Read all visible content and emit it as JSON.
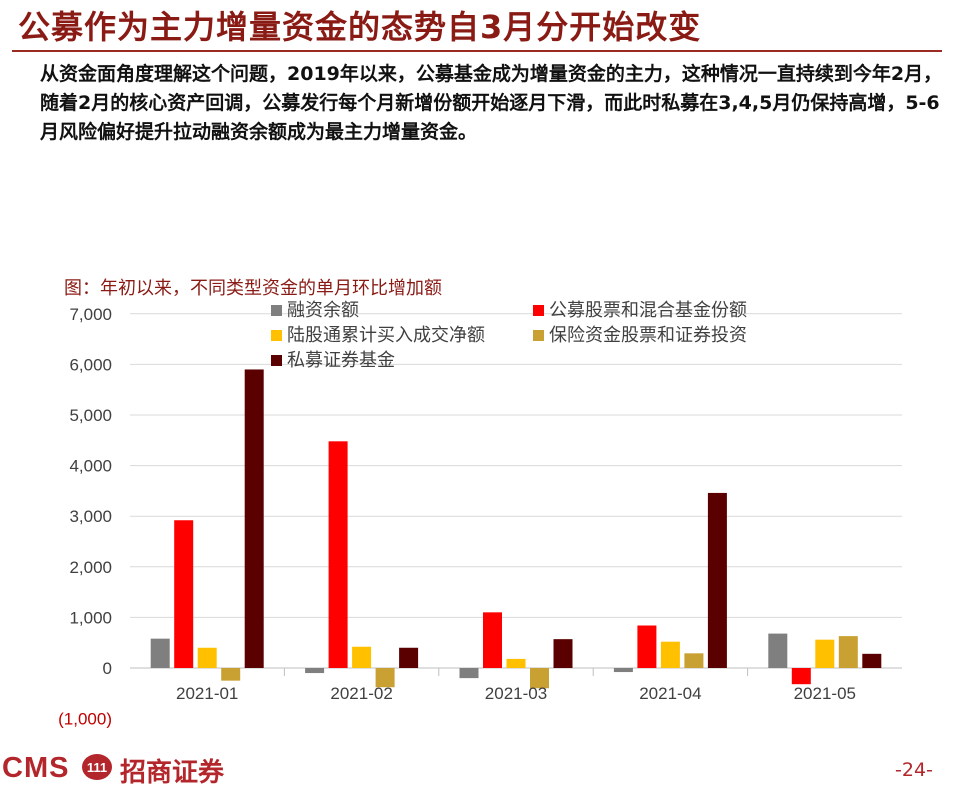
{
  "slide": {
    "title": "公募作为主力增量资金的态势自3月分开始改变",
    "intro": "从资金面角度理解这个问题，2019年以来，公募基金成为增量资金的主力，这种情况一直持续到今年2月，随着2月的核心资产回调，公募发行每个月新增份额开始逐月下滑，而此时私募在3,4,5月仍保持高增，5-6月风险偏好提升拉动融资余额成为最主力增量资金。",
    "page_number": "-24-",
    "brand_cms": "CMS",
    "brand_name": "招商证券",
    "brand_logo_text": "111",
    "colors": {
      "title": "#8a1a14",
      "brand": "#b3262b"
    }
  },
  "chart_data": {
    "type": "bar",
    "title": "图：年初以来，不同类型资金的单月环比增加额",
    "categories": [
      "2021-01",
      "2021-02",
      "2021-03",
      "2021-04",
      "2021-05"
    ],
    "ylim": [
      -1000,
      7000
    ],
    "yticks": [
      -1000,
      0,
      1000,
      2000,
      3000,
      4000,
      5000,
      6000,
      7000
    ],
    "ytick_labels": [
      "(1,000)",
      "0",
      "1,000",
      "2,000",
      "3,000",
      "4,000",
      "5,000",
      "6,000",
      "7,000"
    ],
    "grid": true,
    "legend_position": "top",
    "series": [
      {
        "name": "融资余额",
        "color": "#7f7f7f",
        "values": [
          580,
          -100,
          -200,
          -80,
          680
        ]
      },
      {
        "name": "公募股票和混合基金份额",
        "color": "#ff0000",
        "values": [
          2920,
          4480,
          1100,
          840,
          -320
        ]
      },
      {
        "name": "陆股通累计买入成交净额",
        "color": "#ffc000",
        "values": [
          400,
          420,
          180,
          520,
          560
        ]
      },
      {
        "name": "保险资金股票和证券投资",
        "color": "#c9a032",
        "values": [
          -250,
          -380,
          -400,
          290,
          630
        ]
      },
      {
        "name": "私募证券基金",
        "color": "#5a0000",
        "values": [
          5900,
          400,
          570,
          3460,
          280
        ]
      }
    ]
  }
}
